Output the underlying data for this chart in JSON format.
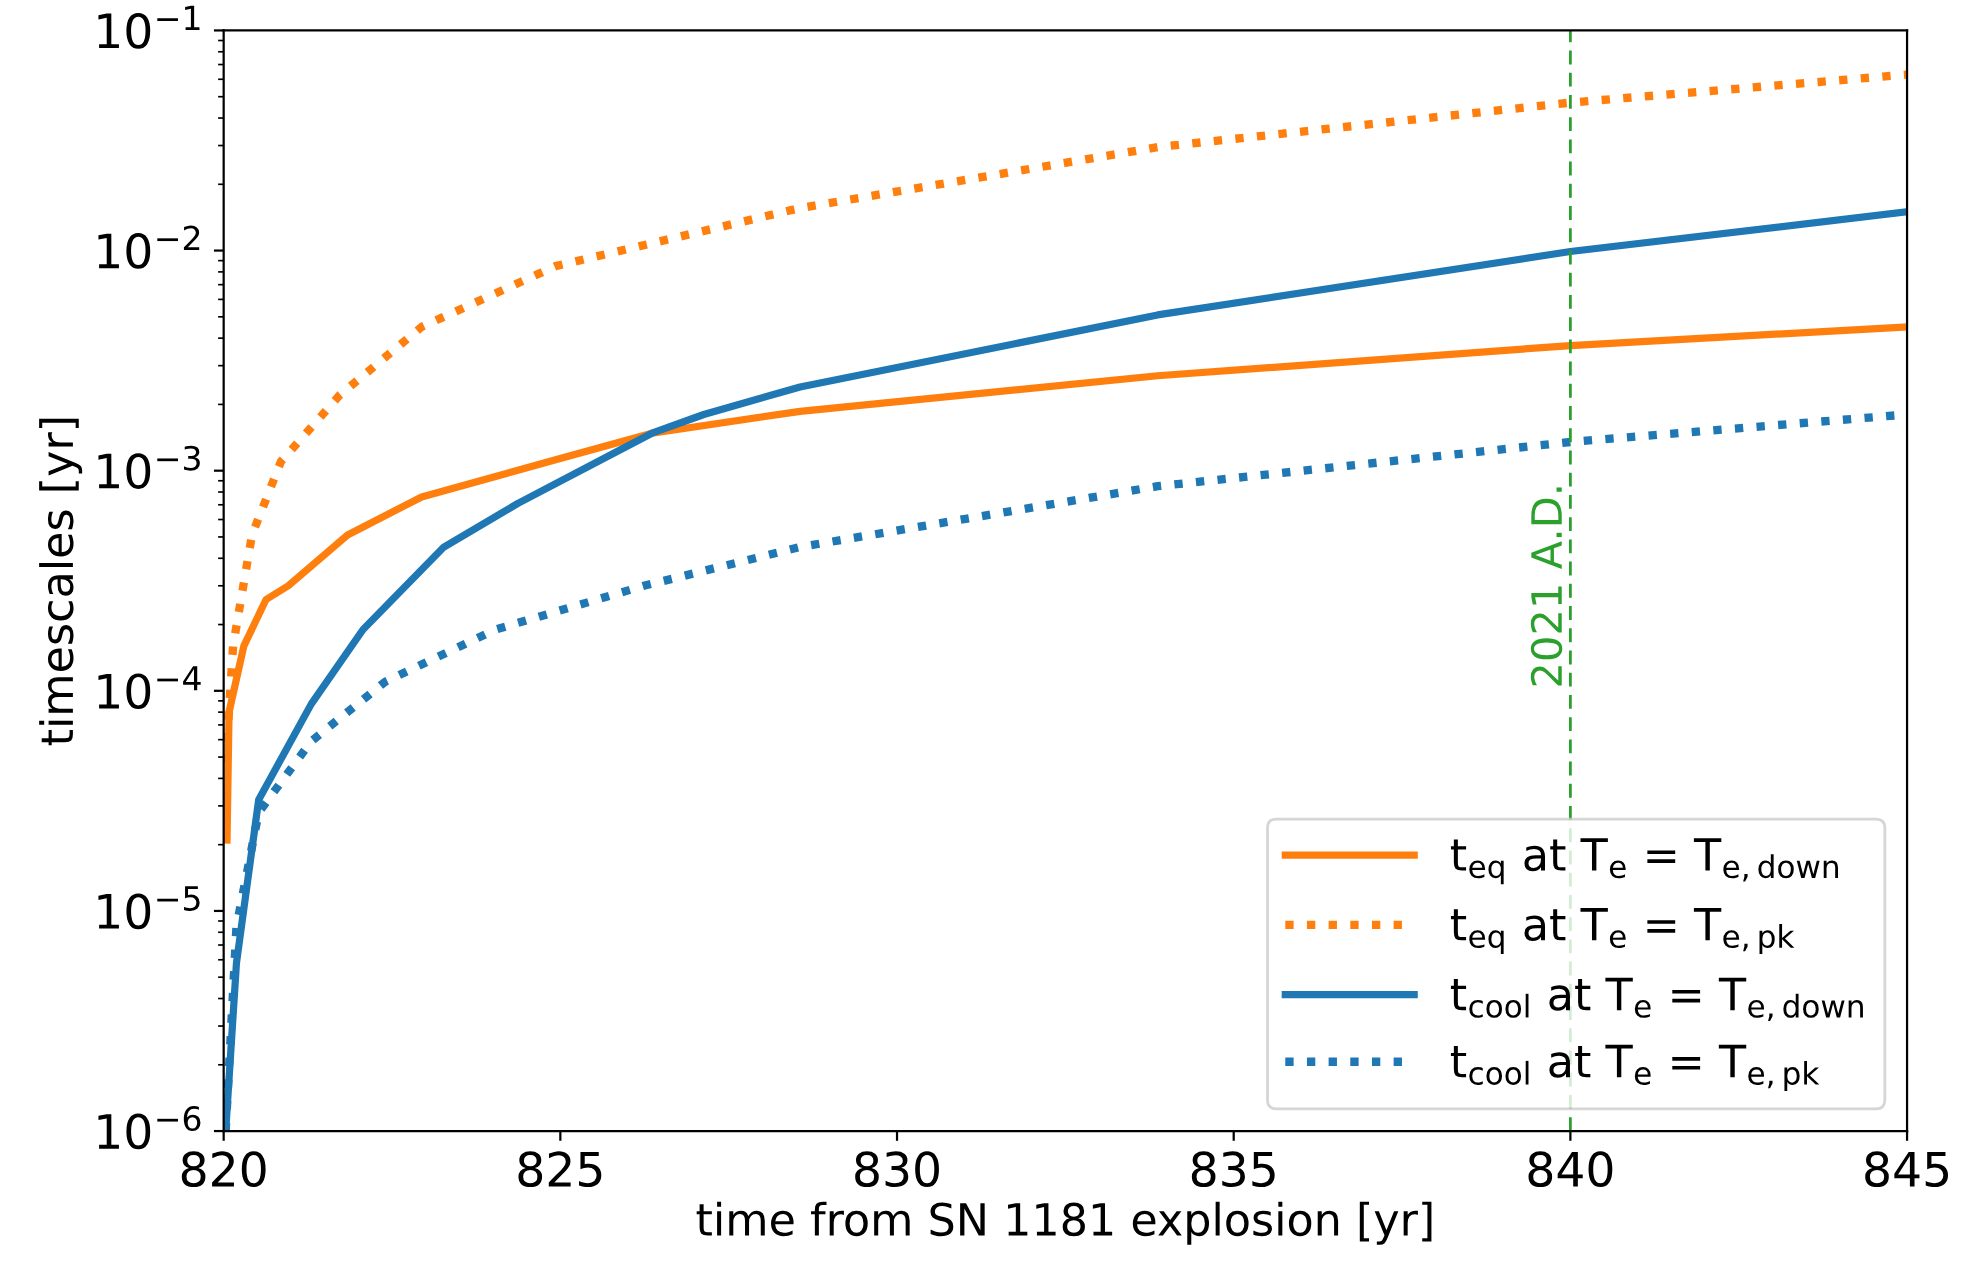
{
  "chart_data": {
    "type": "line",
    "xlabel": "time from SN 1181 explosion [yr]",
    "ylabel": "timescales [yr]",
    "log": "y",
    "xlim": [
      820,
      845
    ],
    "xticks": [
      820,
      825,
      830,
      835,
      840,
      845
    ],
    "ylim": [
      1e-06,
      0.1
    ],
    "yticks": [
      {
        "value": 1e-06,
        "label": "10$^{−6}$"
      },
      {
        "value": 1e-05,
        "label": "10$^{−5}$"
      },
      {
        "value": 0.0001,
        "label": "10$^{−4}$"
      },
      {
        "value": 0.001,
        "label": "10$^{−3}$"
      },
      {
        "value": 0.01,
        "label": "10$^{−2}$"
      },
      {
        "value": 0.1,
        "label": "10$^{−1}$"
      }
    ],
    "grid": false,
    "legend": "bottom right",
    "series": [
      {
        "name": "t$_{eq}$ at T$_{e}$ = T$_{e,down}$",
        "color": "#ff7f0e",
        "line_style": "solid",
        "x": [
          820.05,
          820.08,
          820.3,
          820.63,
          820.96,
          821.84,
          822.94,
          824.93,
          826.36,
          828.56,
          833.87,
          840,
          845
        ],
        "values": [
          2.1e-05,
          8e-05,
          0.00016,
          0.00026,
          0.0003,
          0.00051,
          0.00076,
          0.00112,
          0.00148,
          0.00186,
          0.0027,
          0.0037,
          0.0045
        ]
      },
      {
        "name": "t$_{eq}$ at T$_{e}$ = T$_{e,pk}$",
        "color": "#ff7f0e",
        "line_style": "dotted",
        "x": [
          820.03,
          820.14,
          820.42,
          820.85,
          821.72,
          822.94,
          824.93,
          828.56,
          833.87,
          840,
          845
        ],
        "values": [
          4.7e-05,
          0.00016,
          0.00051,
          0.0011,
          0.0022,
          0.0045,
          0.0085,
          0.0156,
          0.0295,
          0.047,
          0.063
        ]
      },
      {
        "name": "t$_{cool}$ at T$_{e}$ = T$_{e,down}$",
        "color": "#1f77b4",
        "line_style": "solid",
        "x": [
          820.03,
          820.19,
          820.52,
          821.3,
          822.07,
          823.27,
          824.37,
          826.36,
          827.13,
          828.56,
          833.87,
          840,
          845
        ],
        "values": [
          1e-06,
          5.8e-06,
          3.2e-05,
          8.7e-05,
          0.00019,
          0.00045,
          0.00071,
          0.00148,
          0.0018,
          0.0024,
          0.0051,
          0.0099,
          0.015
        ]
      },
      {
        "name": "t$_{cool}$ at T$_{e}$ = T$_{e,pk}$",
        "color": "#1f77b4",
        "line_style": "dotted",
        "x": [
          820.03,
          820.19,
          820.52,
          821.3,
          822.4,
          824.04,
          826.24,
          828.56,
          833.87,
          840,
          845
        ],
        "values": [
          1e-06,
          8.5e-06,
          2.8e-05,
          5.9e-05,
          0.00011,
          0.00019,
          0.0003,
          0.00045,
          0.00085,
          0.00135,
          0.0018
        ]
      }
    ],
    "ref_lines": [
      {
        "axis": "x",
        "value": 840,
        "label": "2021 A.D.",
        "color": "#2ca02c",
        "line_style": "dashed"
      }
    ]
  }
}
